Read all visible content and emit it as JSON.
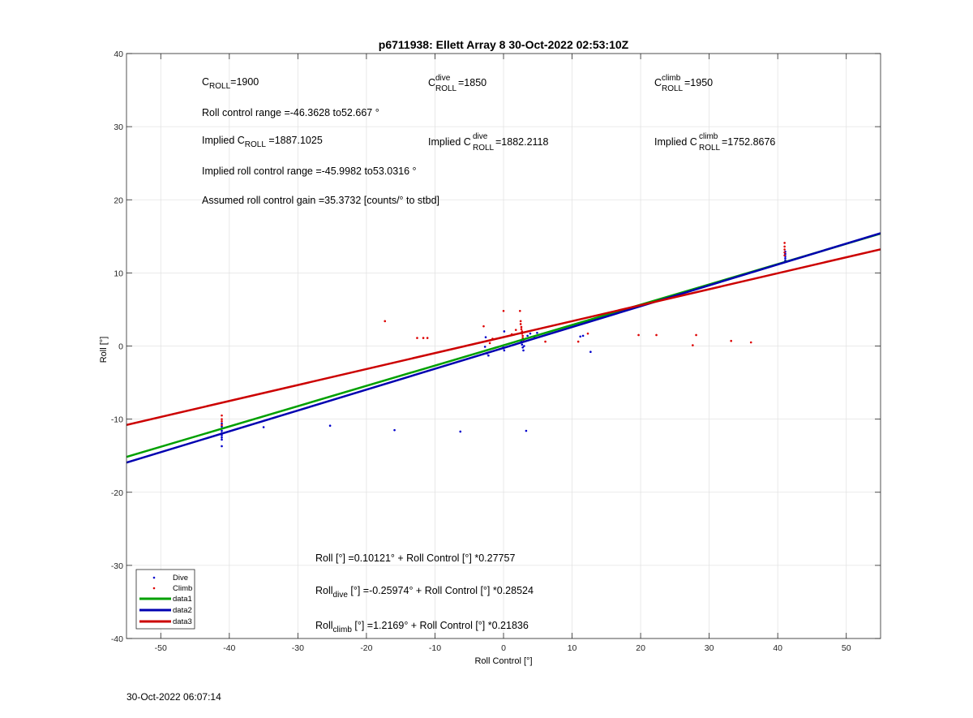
{
  "chart_data": {
    "type": "scatter",
    "title": "p6711938: Ellett Array 8 30-Oct-2022 02:53:10Z",
    "xlabel": "Roll Control [°]",
    "ylabel": "Roll [°]",
    "xlim": [
      -55,
      55
    ],
    "ylim": [
      -40,
      40
    ],
    "xticks": [
      -50,
      -40,
      -30,
      -20,
      -10,
      0,
      10,
      20,
      30,
      40,
      50
    ],
    "yticks": [
      -40,
      -30,
      -20,
      -10,
      0,
      10,
      20,
      30,
      40
    ],
    "grid": true,
    "legend_position": "bottom-left",
    "series": [
      {
        "name": "Dive",
        "kind": "points",
        "color": "#0000cc",
        "points": [
          [
            -41.1,
            -10.6
          ],
          [
            -41.1,
            -11.0
          ],
          [
            -41.1,
            -11.3
          ],
          [
            -41.1,
            -11.6
          ],
          [
            -41.1,
            -11.9
          ],
          [
            -41.1,
            -12.2
          ],
          [
            -41.1,
            -12.5
          ],
          [
            -41.1,
            -12.8
          ],
          [
            -41.1,
            -13.7
          ],
          [
            -35,
            -11.1
          ],
          [
            -25.3,
            -10.9
          ],
          [
            -15.9,
            -11.5
          ],
          [
            -6.3,
            -11.7
          ],
          [
            3.3,
            -11.6
          ],
          [
            -2.7,
            -0.1
          ],
          [
            -2.5,
            -0.6
          ],
          [
            -2.4,
            -1.0
          ],
          [
            -2.2,
            -1.3
          ],
          [
            -2.6,
            1.2
          ],
          [
            -0.1,
            0.0
          ],
          [
            0.0,
            -0.3
          ],
          [
            0.1,
            -0.6
          ],
          [
            0.1,
            2.0
          ],
          [
            2.6,
            0.6
          ],
          [
            2.7,
            0.2
          ],
          [
            2.8,
            -0.2
          ],
          [
            2.9,
            -0.6
          ],
          [
            3.0,
            0.0
          ],
          [
            3.5,
            1.4
          ],
          [
            3.9,
            1.7
          ],
          [
            4.5,
            1.2
          ],
          [
            4.9,
            1.8
          ],
          [
            11.2,
            1.3
          ],
          [
            11.6,
            1.4
          ],
          [
            12.7,
            -0.8
          ],
          [
            41.1,
            11.7
          ],
          [
            41.1,
            12.0
          ],
          [
            41.1,
            12.3
          ],
          [
            41.1,
            12.6
          ],
          [
            41.1,
            12.9
          ]
        ]
      },
      {
        "name": "Climb",
        "kind": "points",
        "color": "#dd0000",
        "points": [
          [
            -41.1,
            -9.5
          ],
          [
            -41.1,
            -10.0
          ],
          [
            -41.1,
            -10.3
          ],
          [
            -41.1,
            -10.8
          ],
          [
            -17.3,
            3.4
          ],
          [
            -12.6,
            1.1
          ],
          [
            -11.7,
            1.1
          ],
          [
            -11.1,
            1.1
          ],
          [
            -2.9,
            2.7
          ],
          [
            -2.0,
            0.4
          ],
          [
            -1.9,
            0.8
          ],
          [
            -1.6,
            1.0
          ],
          [
            0.0,
            4.8
          ],
          [
            1.2,
            1.6
          ],
          [
            1.8,
            2.2
          ],
          [
            2.4,
            4.8
          ],
          [
            2.5,
            3.4
          ],
          [
            2.5,
            3.0
          ],
          [
            2.6,
            2.6
          ],
          [
            2.6,
            2.3
          ],
          [
            2.7,
            2.0
          ],
          [
            2.7,
            1.7
          ],
          [
            2.8,
            1.4
          ],
          [
            2.8,
            1.1
          ],
          [
            2.9,
            0.8
          ],
          [
            6.1,
            0.6
          ],
          [
            10.9,
            0.6
          ],
          [
            12.3,
            1.7
          ],
          [
            19.7,
            1.5
          ],
          [
            22.3,
            1.5
          ],
          [
            27.6,
            0.1
          ],
          [
            28.1,
            1.5
          ],
          [
            33.2,
            0.7
          ],
          [
            36.1,
            0.5
          ],
          [
            41.0,
            14.1
          ],
          [
            41.0,
            13.6
          ],
          [
            41.0,
            13.2
          ],
          [
            41.0,
            12.8
          ],
          [
            41.0,
            12.4
          ]
        ]
      },
      {
        "name": "data1",
        "kind": "line",
        "color": "#00a000",
        "intercept": 0.10121,
        "slope": 0.27757
      },
      {
        "name": "data2",
        "kind": "line",
        "color": "#0000b0",
        "intercept": -0.25974,
        "slope": 0.28524
      },
      {
        "name": "data3",
        "kind": "line",
        "color": "#cc0000",
        "intercept": 1.2169,
        "slope": 0.21836
      }
    ],
    "annotations": {
      "c_roll": {
        "base": "C",
        "sub": "ROLL",
        "value": "=1900"
      },
      "c_roll_dive": {
        "base": "C",
        "sup": "dive",
        "sub": "ROLL",
        "value": " =1850"
      },
      "c_roll_climb": {
        "base": "C",
        "sup": "climb",
        "sub": "ROLL",
        "value": " =1950"
      },
      "roll_control_range": "Roll control range =-46.3628 to52.667 °",
      "implied_c_roll": {
        "prefix": "Implied C",
        "sub": "ROLL",
        "value": " =1887.1025"
      },
      "implied_c_roll_dive": {
        "prefix": "Implied C",
        "sup": "dive",
        "sub": "ROLL",
        "value": " =1882.2118"
      },
      "implied_c_roll_climb": {
        "prefix": "Implied C",
        "sup": "climb",
        "sub": "ROLL",
        "value": " =1752.8676"
      },
      "implied_range": "Implied roll control range =-45.9982 to53.0316 °",
      "gain": "Assumed roll control gain =35.3732 [counts/° to stbd]",
      "fit_all": "Roll [°] =0.10121° + Roll Control [°] *0.27757",
      "fit_dive": {
        "prefix": "Roll",
        "sub": "dive",
        "rest": " [°] =-0.25974° + Roll Control [°] *0.28524"
      },
      "fit_climb": {
        "prefix": "Roll",
        "sub": "climb",
        "rest": " [°] =1.2169° + Roll Control [°] *0.21836"
      }
    }
  },
  "footer": {
    "timestamp": "30-Oct-2022 06:07:14"
  }
}
